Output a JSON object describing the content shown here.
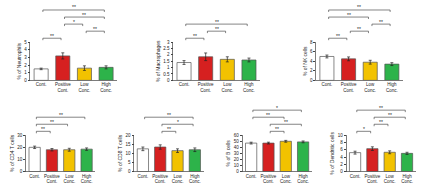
{
  "chart_data": [
    {
      "type": "bar",
      "y_label": "% of Neutrophils",
      "categories": [
        "Cont.",
        "Positive Cont.",
        "Low Conc.",
        "High Conc."
      ],
      "values": [
        1.5,
        3.2,
        1.6,
        1.7
      ],
      "errors": [
        0.1,
        0.4,
        0.3,
        0.2
      ],
      "colors": [
        "#ffffff",
        "#d62020",
        "#f2c200",
        "#2db34a"
      ],
      "ylim": [
        0,
        5
      ],
      "yticks": [
        0,
        1,
        2,
        3,
        4,
        5
      ],
      "brackets": [
        {
          "from": 0,
          "to": 1,
          "label": "**"
        },
        {
          "from": 2,
          "to": 3,
          "label": "**"
        },
        {
          "from": 1,
          "to": 2,
          "label": "*"
        },
        {
          "from": 1,
          "to": 3,
          "label": "**"
        },
        {
          "from": 0,
          "to": 3,
          "label": "**"
        }
      ]
    },
    {
      "type": "bar",
      "y_label": "% of Macrophages",
      "categories": [
        "Cont.",
        "Positive Cont.",
        "Low Conc.",
        "High Conc."
      ],
      "values": [
        1.4,
        1.85,
        1.65,
        1.6
      ],
      "errors": [
        0.15,
        0.3,
        0.2,
        0.15
      ],
      "colors": [
        "#ffffff",
        "#d62020",
        "#f2c200",
        "#2db34a"
      ],
      "ylim": [
        0,
        3
      ],
      "yticks": [
        0,
        0.5,
        1,
        1.5,
        2,
        2.5,
        3
      ],
      "brackets": [
        {
          "from": 0,
          "to": 1,
          "label": "**"
        },
        {
          "from": 1,
          "to": 2,
          "label": "**"
        },
        {
          "from": 0,
          "to": 3,
          "label": "**"
        }
      ]
    },
    {
      "type": "bar",
      "y_label": "% of NK cells",
      "categories": [
        "Cont.",
        "Positive Cont.",
        "Low Conc.",
        "High Conc."
      ],
      "values": [
        5,
        4.5,
        3.8,
        3.4
      ],
      "errors": [
        0.3,
        0.4,
        0.4,
        0.3
      ],
      "colors": [
        "#ffffff",
        "#d62020",
        "#f2c200",
        "#2db34a"
      ],
      "ylim": [
        0,
        8
      ],
      "yticks": [
        0,
        2,
        4,
        6,
        8
      ],
      "brackets": [
        {
          "from": 0,
          "to": 1,
          "label": "**"
        },
        {
          "from": 1,
          "to": 2,
          "label": "**"
        },
        {
          "from": 2,
          "to": 3,
          "label": "**"
        },
        {
          "from": 0,
          "to": 2,
          "label": "**"
        },
        {
          "from": 0,
          "to": 3,
          "label": "**"
        }
      ]
    },
    {
      "type": "bar",
      "y_label": "% of CD4 T cells",
      "categories": [
        "Cont.",
        "Positive Cont.",
        "Low Conc.",
        "High Conc."
      ],
      "values": [
        20,
        18,
        18,
        18.5
      ],
      "errors": [
        1,
        1,
        1.2,
        1
      ],
      "colors": [
        "#ffffff",
        "#d62020",
        "#f2c200",
        "#2db34a"
      ],
      "ylim": [
        0,
        30
      ],
      "yticks": [
        0,
        10,
        20,
        30
      ],
      "brackets": [
        {
          "from": 0,
          "to": 1,
          "label": "**"
        },
        {
          "from": 0,
          "to": 2,
          "label": "**"
        },
        {
          "from": 0,
          "to": 3,
          "label": "**"
        }
      ]
    },
    {
      "type": "bar",
      "y_label": "% of CD8 T cells",
      "categories": [
        "Cont.",
        "Positive Cont.",
        "Low Conc.",
        "High Conc."
      ],
      "values": [
        12.5,
        13.5,
        11.5,
        12
      ],
      "errors": [
        1,
        1.2,
        1,
        1
      ],
      "colors": [
        "#ffffff",
        "#d62020",
        "#f2c200",
        "#2db34a"
      ],
      "ylim": [
        0,
        20
      ],
      "yticks": [
        0,
        5,
        10,
        15,
        20
      ],
      "brackets": [
        {
          "from": 1,
          "to": 2,
          "label": "**"
        },
        {
          "from": 1,
          "to": 3,
          "label": "*"
        },
        {
          "from": 0,
          "to": 3,
          "label": "**"
        }
      ]
    },
    {
      "type": "bar",
      "y_label": "% of B cells",
      "categories": [
        "Cont.",
        "Positive Cont.",
        "Low Conc.",
        "High Conc."
      ],
      "values": [
        47,
        47,
        50,
        49
      ],
      "errors": [
        1.5,
        1.5,
        1.5,
        1.5
      ],
      "colors": [
        "#ffffff",
        "#d62020",
        "#f2c200",
        "#2db34a"
      ],
      "ylim": [
        0,
        60
      ],
      "yticks": [
        0,
        10,
        20,
        30,
        40,
        50,
        60
      ],
      "brackets": [
        {
          "from": 1,
          "to": 2,
          "label": "**"
        },
        {
          "from": 1,
          "to": 3,
          "label": "**"
        },
        {
          "from": 0,
          "to": 2,
          "label": "**"
        },
        {
          "from": 0,
          "to": 3,
          "label": "*"
        }
      ]
    },
    {
      "type": "bar",
      "y_label": "% of Dendritic cells",
      "categories": [
        "Cont.",
        "Positive Cont.",
        "Low Conc.",
        "High Conc."
      ],
      "values": [
        5.2,
        6.3,
        5.3,
        5.0
      ],
      "errors": [
        0.4,
        0.5,
        0.4,
        0.3
      ],
      "colors": [
        "#ffffff",
        "#d62020",
        "#f2c200",
        "#2db34a"
      ],
      "ylim": [
        0,
        10
      ],
      "yticks": [
        0,
        2,
        4,
        6,
        8,
        10
      ],
      "brackets": [
        {
          "from": 0,
          "to": 1,
          "label": "*"
        },
        {
          "from": 1,
          "to": 2,
          "label": "**"
        },
        {
          "from": 1,
          "to": 3,
          "label": "**"
        },
        {
          "from": 0,
          "to": 3,
          "label": "**"
        }
      ]
    }
  ]
}
